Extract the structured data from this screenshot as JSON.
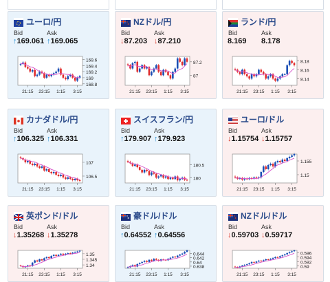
{
  "labels": {
    "bid": "Bid",
    "ask": "Ask"
  },
  "times": [
    "21:15",
    "23:15",
    "1:15",
    "3:15"
  ],
  "colors": {
    "up_candle": "#1b4fb5",
    "down_candle": "#e02d2d",
    "ma": "#d54fc9",
    "card_up": "#e9f3fb",
    "card_down": "#fcefef"
  },
  "cards": [
    {
      "pair": "ユーロ/円",
      "flag": "eu",
      "dir": "up",
      "bid": "169.061",
      "ask": "169.065",
      "bid_arrow": "↑",
      "ask_arrow": "↑",
      "ticks": [
        "169.6",
        "169.4",
        "169.2",
        "169",
        "168.8"
      ],
      "ymin": 168.75,
      "ymax": 169.7,
      "closes": [
        169.45,
        169.5,
        169.35,
        169.3,
        169.2,
        169.25,
        169.05,
        169.1,
        169.2,
        169.15,
        169.0,
        169.1,
        169.05,
        169.1,
        169.15,
        169.2,
        169.3,
        169.1,
        169.0,
        168.95,
        169.05,
        169.1,
        169.0,
        168.9,
        169.0,
        169.05
      ]
    },
    {
      "pair": "NZドル/円",
      "flag": "nz",
      "dir": "down",
      "bid": "87.203",
      "ask": "87.210",
      "bid_arrow": "↓",
      "ask_arrow": "↓",
      "ticks": [
        "87.2",
        "87"
      ],
      "ymin": 86.85,
      "ymax": 87.28,
      "closes": [
        87.15,
        87.1,
        87.18,
        87.2,
        87.05,
        87.1,
        87.15,
        87.1,
        87.12,
        87.0,
        87.05,
        87.1,
        87.15,
        87.05,
        87.0,
        87.08,
        87.05,
        87.0,
        86.95,
        87.05,
        87.1,
        87.25,
        87.2,
        87.15,
        87.25,
        87.2
      ]
    },
    {
      "pair": "ランド/円",
      "flag": "za",
      "dir": "down",
      "bid": "8.169",
      "ask": "8.178",
      "bid_arrow": "",
      "ask_arrow": "",
      "ticks": [
        "8.18",
        "8.16",
        "8.14"
      ],
      "ymin": 8.125,
      "ymax": 8.19,
      "closes": [
        8.16,
        8.155,
        8.15,
        8.16,
        8.15,
        8.145,
        8.14,
        8.15,
        8.145,
        8.15,
        8.16,
        8.155,
        8.15,
        8.14,
        8.145,
        8.15,
        8.14,
        8.135,
        8.14,
        8.145,
        8.15,
        8.15,
        8.17,
        8.18,
        8.175,
        8.17
      ]
    },
    {
      "pair": "カナダドル/円",
      "flag": "ca",
      "dir": "up",
      "bid": "106.325",
      "ask": "106.331",
      "bid_arrow": "↑",
      "ask_arrow": "↑",
      "ticks": [
        "107",
        "106.5"
      ],
      "ymin": 106.25,
      "ymax": 107.3,
      "closes": [
        107.15,
        107.1,
        107.0,
        107.05,
        106.95,
        106.9,
        106.95,
        106.85,
        106.8,
        106.85,
        106.7,
        106.75,
        106.65,
        106.6,
        106.65,
        106.55,
        106.5,
        106.55,
        106.45,
        106.4,
        106.45,
        106.4,
        106.35,
        106.4,
        106.35,
        106.33
      ]
    },
    {
      "pair": "スイスフラン/円",
      "flag": "ch",
      "dir": "up",
      "bid": "179.907",
      "ask": "179.923",
      "bid_arrow": "↑",
      "ask_arrow": "↑",
      "ticks": [
        "180.5",
        "180"
      ],
      "ymin": 179.8,
      "ymax": 180.9,
      "closes": [
        180.6,
        180.55,
        180.45,
        180.5,
        180.4,
        180.3,
        180.2,
        180.3,
        180.25,
        180.1,
        180.2,
        180.15,
        180.0,
        180.05,
        180.1,
        180.0,
        180.05,
        179.95,
        180.0,
        179.95,
        180.05,
        179.9,
        179.95,
        180.0,
        179.92,
        179.91
      ]
    },
    {
      "pair": "ユーロ/ドル",
      "flag": "us",
      "dir": "down",
      "bid": "1.15754",
      "ask": "1.15757",
      "bid_arrow": "↓",
      "ask_arrow": "↓",
      "ticks": [
        "1.155",
        "1.15"
      ],
      "ymin": 1.147,
      "ymax": 1.1575,
      "closes": [
        1.149,
        1.1485,
        1.1488,
        1.1482,
        1.1486,
        1.1484,
        1.1488,
        1.1486,
        1.149,
        1.1488,
        1.149,
        1.151,
        1.153,
        1.152,
        1.1535,
        1.154,
        1.153,
        1.1545,
        1.155,
        1.1545,
        1.1555,
        1.155,
        1.156,
        1.1565,
        1.157,
        1.1575
      ]
    },
    {
      "pair": "英ポンド/ドル",
      "flag": "gb",
      "dir": "down",
      "bid": "1.35268",
      "ask": "1.35278",
      "bid_arrow": "↓",
      "ask_arrow": "↓",
      "ticks": [
        "1.35",
        "1.345",
        "1.34"
      ],
      "ymin": 1.337,
      "ymax": 1.353,
      "closes": [
        1.339,
        1.338,
        1.3385,
        1.3395,
        1.339,
        1.342,
        1.344,
        1.343,
        1.345,
        1.344,
        1.346,
        1.347,
        1.346,
        1.348,
        1.349,
        1.348,
        1.349,
        1.35,
        1.349,
        1.35,
        1.3505,
        1.35,
        1.351,
        1.3515,
        1.352,
        1.3526
      ]
    },
    {
      "pair": "豪ドル/ドル",
      "flag": "au",
      "dir": "up",
      "bid": "0.64552",
      "ask": "0.64556",
      "bid_arrow": "↑",
      "ask_arrow": "↑",
      "ticks": [
        "0.644",
        "0.642",
        "0.64",
        "0.638"
      ],
      "ymin": 0.637,
      "ymax": 0.6455,
      "closes": [
        0.6375,
        0.638,
        0.6385,
        0.6378,
        0.639,
        0.6395,
        0.64,
        0.6405,
        0.64,
        0.641,
        0.6405,
        0.6415,
        0.641,
        0.6405,
        0.6412,
        0.641,
        0.6408,
        0.6415,
        0.642,
        0.6425,
        0.6422,
        0.643,
        0.6435,
        0.644,
        0.6448,
        0.6455
      ]
    },
    {
      "pair": "NZドル/ドル",
      "flag": "nz",
      "dir": "down",
      "bid": "0.59703",
      "ask": "0.59717",
      "bid_arrow": "↓",
      "ask_arrow": "↓",
      "ticks": [
        "0.596",
        "0.594",
        "0.592",
        "0.59"
      ],
      "ymin": 0.589,
      "ymax": 0.597,
      "closes": [
        0.5895,
        0.5893,
        0.5898,
        0.5902,
        0.5905,
        0.5908,
        0.5912,
        0.5918,
        0.5915,
        0.592,
        0.5924,
        0.5922,
        0.5926,
        0.593,
        0.5928,
        0.5932,
        0.5936,
        0.594,
        0.5938,
        0.5944,
        0.5948,
        0.5952,
        0.5958,
        0.5962,
        0.5966,
        0.597
      ]
    }
  ]
}
